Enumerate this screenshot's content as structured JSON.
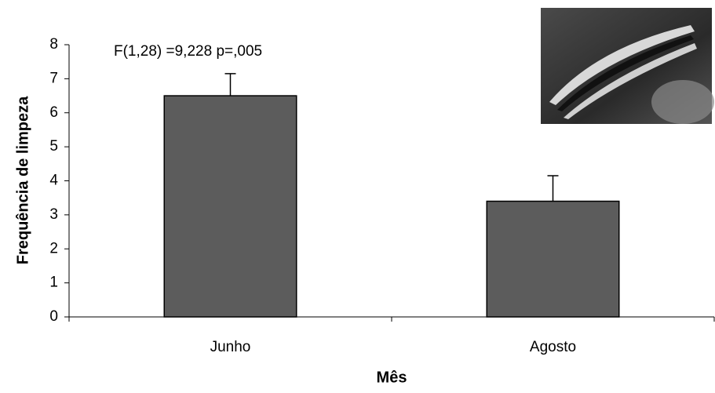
{
  "chart_data": {
    "type": "bar",
    "annotation": "F(1,28) =9,228 p=,005",
    "x_label": "Mês",
    "y_label": "Frequência de limpeza",
    "categories": [
      "Junho",
      "Agosto"
    ],
    "values": [
      6.5,
      3.4
    ],
    "errors": [
      0.65,
      0.75
    ],
    "color": "#5c5c5c",
    "ylim": [
      0,
      8
    ],
    "yticks": [
      0,
      1,
      2,
      3,
      4,
      5,
      6,
      7,
      8
    ],
    "grid": false
  }
}
